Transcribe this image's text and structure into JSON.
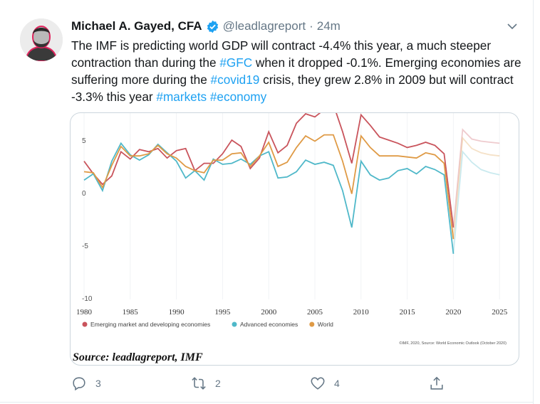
{
  "tweet": {
    "author_name": "Michael A. Gayed, CFA",
    "verified": true,
    "handle": "@leadlagreport",
    "separator": "·",
    "time": "24m",
    "text_segments": [
      {
        "t": "The IMF is predicting world GDP will contract -4.4% this year, a much steeper contraction than during the ",
        "tag": false
      },
      {
        "t": "#GFC",
        "tag": true
      },
      {
        "t": " when it dropped -0.1%. Emerging economies are suffering more during the ",
        "tag": false
      },
      {
        "t": "#covid19",
        "tag": true
      },
      {
        "t": " crisis, they grew 2.8% in 2009 but will contract -3.3% this year ",
        "tag": false
      },
      {
        "t": "#markets",
        "tag": true
      },
      {
        "t": " ",
        "tag": false
      },
      {
        "t": "#economy",
        "tag": true
      }
    ],
    "icons": {
      "verified": "verified-badge-icon",
      "menu": "chevron-down-icon"
    }
  },
  "actions": {
    "reply_count": "3",
    "retweet_count": "2",
    "like_count": "4",
    "icons": [
      "reply-icon",
      "retweet-icon",
      "like-icon",
      "share-icon"
    ]
  },
  "colors": {
    "accent": "#1da1f2",
    "muted": "#657786",
    "emerging": "#c9545c",
    "advanced": "#4fb8c9",
    "world": "#df9a45"
  },
  "chart_data": {
    "type": "line",
    "x": [
      1980,
      1981,
      1982,
      1983,
      1984,
      1985,
      1986,
      1987,
      1988,
      1989,
      1990,
      1991,
      1992,
      1993,
      1994,
      1995,
      1996,
      1997,
      1998,
      1999,
      2000,
      2001,
      2002,
      2003,
      2004,
      2005,
      2006,
      2007,
      2008,
      2009,
      2010,
      2011,
      2012,
      2013,
      2014,
      2015,
      2016,
      2017,
      2018,
      2019,
      2020,
      2021,
      2022,
      2023,
      2024,
      2025
    ],
    "forecast_from": 2021,
    "series": [
      {
        "name": "Emerging market and developing economies",
        "color": "#c9545c",
        "values": [
          3.0,
          1.8,
          0.8,
          1.6,
          3.9,
          3.2,
          4.1,
          3.9,
          4.2,
          3.3,
          4.0,
          4.2,
          2.1,
          2.8,
          2.8,
          3.7,
          5.0,
          4.4,
          2.3,
          3.3,
          5.8,
          3.8,
          4.5,
          6.6,
          7.5,
          7.2,
          7.9,
          8.4,
          5.8,
          2.8,
          7.4,
          6.4,
          5.3,
          5.0,
          4.7,
          4.3,
          4.5,
          4.8,
          4.5,
          3.7,
          -3.3,
          6.0,
          5.1,
          4.9,
          4.8,
          4.7
        ]
      },
      {
        "name": "Advanced economies",
        "color": "#4fb8c9",
        "values": [
          1.2,
          1.8,
          0.2,
          3.0,
          4.7,
          3.6,
          3.1,
          3.6,
          4.6,
          3.8,
          3.0,
          1.4,
          2.1,
          1.2,
          3.2,
          2.7,
          2.8,
          3.2,
          2.7,
          3.5,
          3.9,
          1.4,
          1.5,
          2.0,
          3.1,
          2.7,
          2.9,
          2.6,
          0.2,
          -3.3,
          3.0,
          1.7,
          1.2,
          1.4,
          2.1,
          2.3,
          1.8,
          2.5,
          2.2,
          1.7,
          -5.8,
          3.9,
          2.9,
          2.2,
          1.9,
          1.7
        ]
      },
      {
        "name": "World",
        "color": "#df9a45",
        "values": [
          2.0,
          1.9,
          0.5,
          2.6,
          4.4,
          3.5,
          3.5,
          3.7,
          4.5,
          3.7,
          3.3,
          2.5,
          2.1,
          1.9,
          3.1,
          3.1,
          3.7,
          3.8,
          2.5,
          3.5,
          4.8,
          2.5,
          2.9,
          4.3,
          5.4,
          4.9,
          5.5,
          5.5,
          3.0,
          -0.1,
          5.4,
          4.3,
          3.5,
          3.5,
          3.5,
          3.4,
          3.3,
          3.8,
          3.6,
          2.8,
          -4.4,
          5.2,
          4.2,
          3.8,
          3.6,
          3.5
        ]
      }
    ],
    "xticks": [
      "1980",
      "1985",
      "1990",
      "1995",
      "2000",
      "2005",
      "2010",
      "2015",
      "2020",
      "2025"
    ],
    "yticks": [
      "5",
      "0",
      "-5",
      "-10"
    ],
    "ylim": [
      -10,
      8.5
    ],
    "xlim": [
      1980,
      2025
    ],
    "grid": "vertical",
    "legend_position": "bottom-left",
    "credit": "©IMF, 2020, Source: World Economic Outlook (October 2020)",
    "source_caption": "Source: leadlagreport, IMF"
  }
}
